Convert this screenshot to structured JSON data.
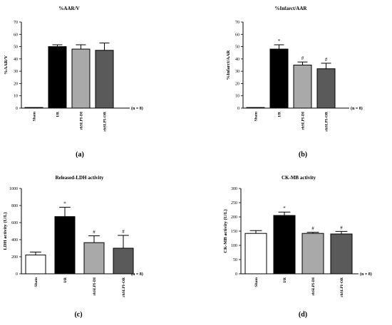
{
  "chart_data": [
    {
      "type": "bar",
      "panel_label": "(a)",
      "title": "%AAR/V",
      "ylabel": "%AAR/V",
      "ylim": [
        0,
        70
      ],
      "yticks": [
        0,
        10,
        20,
        30,
        40,
        50,
        60,
        70
      ],
      "categories": [
        "Sham",
        "I/R",
        "rhSLPI-DI",
        "rhSLPI-OR"
      ],
      "values": [
        0.5,
        50,
        48,
        47
      ],
      "errors": [
        0,
        1.5,
        3.5,
        6
      ],
      "fills": [
        "#ffffff",
        "#000000",
        "#a9a9a9",
        "#5a5a5a"
      ],
      "significance": [
        "",
        "",
        "",
        ""
      ],
      "n_label": "(n = 8)"
    },
    {
      "type": "bar",
      "panel_label": "(b)",
      "title": "%Infarct/AAR",
      "ylabel": "%Infarct/AAR",
      "ylim": [
        0,
        70
      ],
      "yticks": [
        0,
        10,
        20,
        30,
        40,
        50,
        60,
        70
      ],
      "categories": [
        "Sham",
        "I/R",
        "rhSLPI-DI",
        "rhSLPI-OR"
      ],
      "values": [
        0.5,
        48,
        35,
        32
      ],
      "errors": [
        0,
        3.5,
        2.5,
        4.5
      ],
      "fills": [
        "#ffffff",
        "#000000",
        "#a9a9a9",
        "#5a5a5a"
      ],
      "significance": [
        "",
        "*",
        "#",
        "#"
      ],
      "n_label": "(n = 8)"
    },
    {
      "type": "bar",
      "panel_label": "(c)",
      "title": "Released-LDH activity",
      "ylabel": "LDH activity (U/L)",
      "ylim": [
        0,
        1000
      ],
      "yticks": [
        0,
        200,
        400,
        600,
        800,
        1000
      ],
      "categories": [
        "Sham",
        "I/R",
        "rhSLPI-DI",
        "rhSLPI-OR"
      ],
      "values": [
        220,
        670,
        365,
        300
      ],
      "errors": [
        35,
        110,
        80,
        150
      ],
      "fills": [
        "#ffffff",
        "#000000",
        "#a9a9a9",
        "#5a5a5a"
      ],
      "significance": [
        "",
        "*",
        "#",
        "#"
      ],
      "n_label": "(n = 8)"
    },
    {
      "type": "bar",
      "panel_label": "(d)",
      "title": "CK-MB activity",
      "ylabel": "CK-MB activity (U/L)",
      "ylim": [
        0,
        300
      ],
      "yticks": [
        0,
        50,
        100,
        150,
        200,
        250,
        300
      ],
      "categories": [
        "Sham",
        "I/R",
        "rhSLPI-DI",
        "rhSLPI-OR"
      ],
      "values": [
        142,
        205,
        142,
        140
      ],
      "errors": [
        10,
        12,
        4,
        9
      ],
      "fills": [
        "#ffffff",
        "#000000",
        "#a9a9a9",
        "#5a5a5a"
      ],
      "significance": [
        "",
        "*",
        "#",
        "#"
      ],
      "n_label": "(n = 8)"
    }
  ]
}
